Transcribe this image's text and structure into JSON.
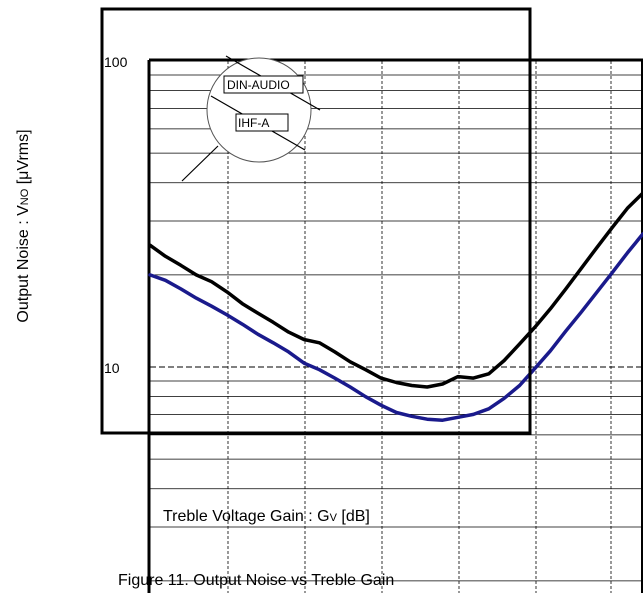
{
  "chart_data": {
    "type": "line",
    "caption": "Figure 11. Output Noise vs Treble Gain",
    "xlabel": "Treble Voltage Gain : G",
    "xlabel_sub": "V",
    "xlabel_unit": " [dB]",
    "ylabel_pre": "Output Noise : V",
    "ylabel_sub": "NO",
    "ylabel_unit": " [μVrms]",
    "yscale": "log",
    "y_ticks": [
      "100",
      "10"
    ],
    "ylim": [
      2,
      100
    ],
    "grid": true,
    "series_line_color_1": "#000000",
    "series_line_color_2": "#1a1a8c",
    "x_index": [
      0,
      1,
      2,
      3,
      4,
      5,
      6,
      7,
      8,
      9,
      10,
      11,
      12,
      13,
      14,
      15,
      16,
      17,
      18,
      19,
      20,
      21,
      22,
      23,
      24,
      25,
      26,
      27,
      28,
      29,
      30,
      31,
      32
    ],
    "series": [
      {
        "name": "DIN-AUDIO",
        "values": [
          25,
          23,
          21.5,
          20,
          19,
          17.6,
          16.1,
          15,
          14,
          13,
          12.3,
          12,
          11.2,
          10.4,
          9.8,
          9.2,
          8.9,
          8.7,
          8.6,
          8.8,
          9.3,
          9.2,
          9.5,
          10.5,
          11.9,
          13.5,
          15.5,
          18,
          21,
          24.5,
          28.5,
          33,
          37
        ]
      },
      {
        "name": "IHF-A",
        "values": [
          20,
          19.2,
          18,
          16.8,
          15.8,
          14.8,
          13.8,
          12.8,
          12,
          11.2,
          10.3,
          9.8,
          9.2,
          8.6,
          8,
          7.5,
          7.1,
          6.9,
          6.75,
          6.7,
          6.85,
          7,
          7.3,
          7.9,
          8.7,
          9.9,
          11.3,
          13.1,
          15.1,
          17.5,
          20.3,
          23.6,
          27.2
        ]
      }
    ]
  }
}
